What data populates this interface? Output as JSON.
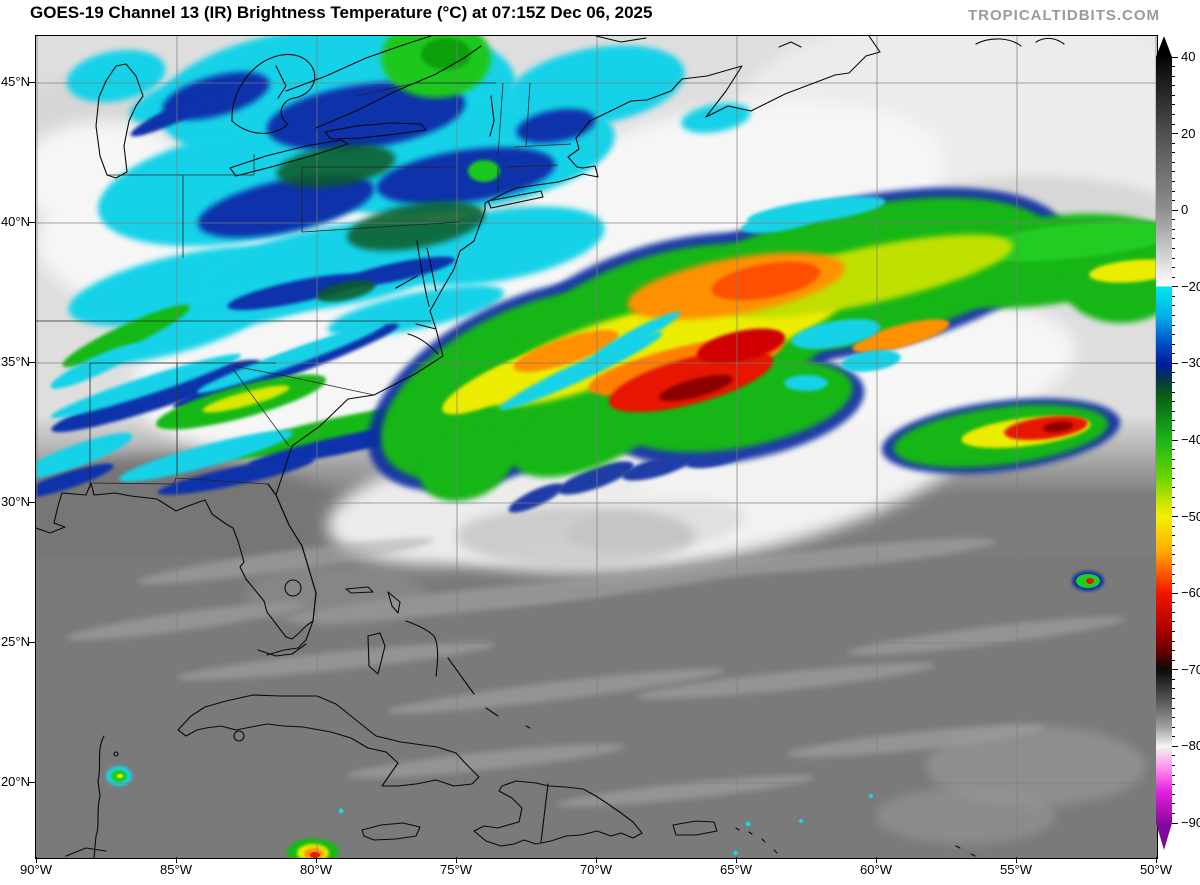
{
  "header": {
    "title": "GOES-19 Channel 13 (IR) Brightness Temperature (°C) at 07:15Z Dec 06, 2025",
    "watermark": "TROPICALTIDBITS.COM"
  },
  "axes": {
    "lat": [
      "45°N",
      "40°N",
      "35°N",
      "30°N",
      "25°N",
      "20°N"
    ],
    "lon": [
      "90°W",
      "85°W",
      "80°W",
      "75°W",
      "70°W",
      "65°W",
      "60°W",
      "55°W",
      "50°W"
    ]
  },
  "colorbar": {
    "labels": [
      "40",
      "20",
      "0",
      "−20",
      "−30",
      "−40",
      "−50",
      "−60",
      "−70",
      "−80",
      "−90"
    ],
    "arrow_up_color": "#000000",
    "arrow_down_color": "#80089a",
    "gradient": [
      [
        0.0,
        "#050505"
      ],
      [
        0.1,
        "#4f4f4f"
      ],
      [
        0.2,
        "#8f8f8f"
      ],
      [
        0.299,
        "#ffffff"
      ],
      [
        0.3,
        "#00e6f2"
      ],
      [
        0.34,
        "#00aee6"
      ],
      [
        0.37,
        "#0057cf"
      ],
      [
        0.4,
        "#001c9b"
      ],
      [
        0.42,
        "#04344c"
      ],
      [
        0.44,
        "#085a14"
      ],
      [
        0.5,
        "#1cb41c"
      ],
      [
        0.55,
        "#6fd400"
      ],
      [
        0.58,
        "#c3e400"
      ],
      [
        0.6,
        "#f2f200"
      ],
      [
        0.645,
        "#ffaa00"
      ],
      [
        0.67,
        "#ff6400"
      ],
      [
        0.7,
        "#f21400"
      ],
      [
        0.75,
        "#a80000"
      ],
      [
        0.78,
        "#5a0000"
      ],
      [
        0.8,
        "#0a0a0a"
      ],
      [
        0.84,
        "#565656"
      ],
      [
        0.875,
        "#a0a0a0"
      ],
      [
        0.9,
        "#f4f4f4"
      ],
      [
        0.93,
        "#ff8ce8"
      ],
      [
        0.96,
        "#e01ee0"
      ],
      [
        1.0,
        "#8c0a9b"
      ]
    ]
  }
}
